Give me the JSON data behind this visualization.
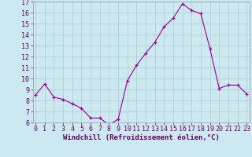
{
  "x": [
    0,
    1,
    2,
    3,
    4,
    5,
    6,
    7,
    8,
    9,
    10,
    11,
    12,
    13,
    14,
    15,
    16,
    17,
    18,
    19,
    20,
    21,
    22,
    23
  ],
  "y": [
    8.5,
    9.5,
    8.3,
    8.1,
    7.7,
    7.3,
    6.4,
    6.4,
    5.8,
    6.3,
    9.8,
    11.2,
    12.3,
    13.3,
    14.7,
    15.5,
    16.8,
    16.2,
    15.9,
    12.7,
    9.1,
    9.4,
    9.4,
    8.6
  ],
  "line_color": "#990099",
  "marker": "+",
  "marker_size": 3,
  "background_color": "#cce8f0",
  "grid_color": "#b0c8c8",
  "xlabel": "Windchill (Refroidissement éolien,°C)",
  "xlabel_fontsize": 6.5,
  "tick_fontsize": 6.0,
  "ylim": [
    6,
    17
  ],
  "yticks": [
    6,
    7,
    8,
    9,
    10,
    11,
    12,
    13,
    14,
    15,
    16,
    17
  ],
  "xticks": [
    0,
    1,
    2,
    3,
    4,
    5,
    6,
    7,
    8,
    9,
    10,
    11,
    12,
    13,
    14,
    15,
    16,
    17,
    18,
    19,
    20,
    21,
    22,
    23
  ],
  "xlim": [
    -0.3,
    23.3
  ]
}
